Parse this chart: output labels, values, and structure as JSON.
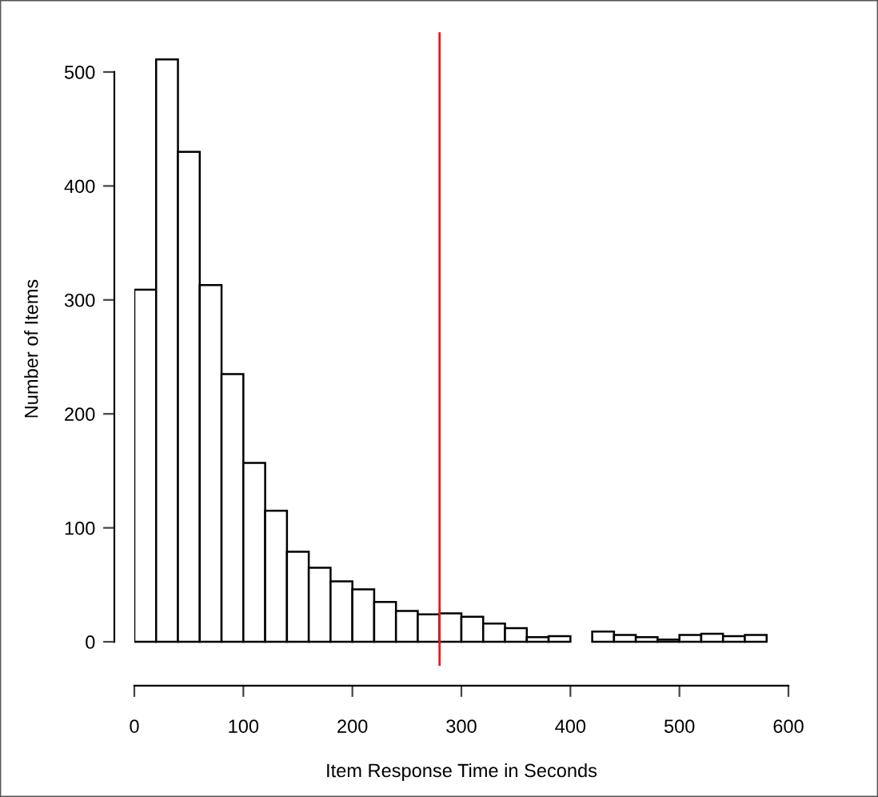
{
  "chart_data": {
    "type": "histogram",
    "xlabel": "Item Response Time in Seconds",
    "ylabel": "Number of Items",
    "bins": [
      0,
      20,
      40,
      60,
      80,
      100,
      120,
      140,
      160,
      180,
      200,
      220,
      240,
      260,
      280,
      300,
      320,
      340,
      360,
      380,
      400,
      420,
      440,
      460,
      480,
      500,
      520,
      540,
      560,
      580,
      600
    ],
    "values": [
      309,
      511,
      430,
      313,
      235,
      157,
      115,
      79,
      65,
      53,
      46,
      35,
      27,
      24,
      25,
      22,
      16,
      12,
      4,
      5,
      0,
      9,
      6,
      4,
      2,
      6,
      7,
      5,
      6,
      0
    ],
    "color": "#ffffff",
    "xlim": [
      0,
      600
    ],
    "ylim": [
      -21,
      535
    ],
    "xticks": [
      0,
      100,
      200,
      300,
      400,
      500,
      600
    ],
    "yticks": [
      0,
      100,
      200,
      300,
      400,
      500
    ],
    "ref_lines": [
      {
        "axis": "x",
        "value": 280,
        "color": "#e41a1c"
      }
    ],
    "grid": false
  }
}
